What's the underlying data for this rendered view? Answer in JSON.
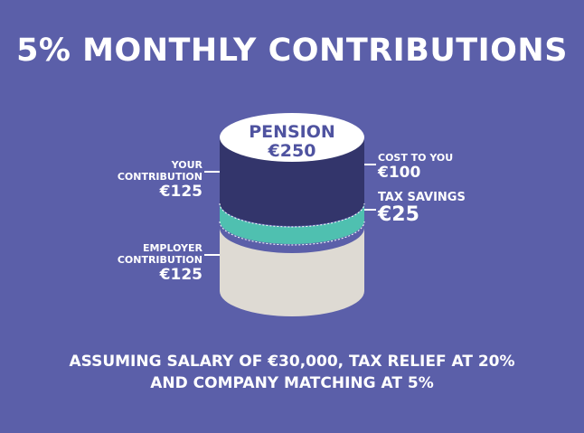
{
  "title": "5% MONTHLY CONTRIBUTIONS",
  "pension": {
    "label": "PENSION",
    "value": "€250"
  },
  "your_contribution": {
    "label_line1": "YOUR",
    "label_line2": "CONTRIBUTION",
    "value": "€125"
  },
  "employer_contribution": {
    "label_line1": "EMPLOYER",
    "label_line2": "CONTRIBUTION",
    "value": "€125"
  },
  "cost_to_you": {
    "label": "COST TO YOU",
    "value": "€100"
  },
  "tax_savings": {
    "label": "TAX SAVINGS",
    "value": "€25"
  },
  "footer": {
    "line1": "ASSUMING SALARY OF €30,000, TAX RELIEF AT 20%",
    "line2": "AND COMPANY MATCHING AT 5%"
  },
  "colors": {
    "background": "#5b5fa9",
    "your_contribution": "#33356b",
    "tax_savings": "#4fc0b0",
    "employer_contribution": "#dedad3",
    "top": "#ffffff",
    "text_accent": "#4f53a0"
  }
}
